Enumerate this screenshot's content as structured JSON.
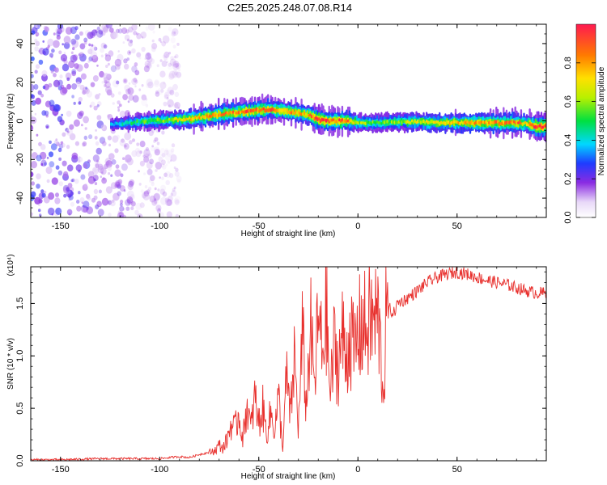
{
  "title": "C2E5.2025.248.07.08.R14",
  "chart_data": [
    {
      "type": "heatmap",
      "title": "C2E5.2025.248.07.08.R14",
      "xlabel": "Height of straight line (km)",
      "ylabel": "Frequency (Hz)",
      "xlim": [
        -165,
        95
      ],
      "ylim": [
        -50,
        50
      ],
      "xticks": [
        -150,
        -100,
        -50,
        0,
        50
      ],
      "xtick_labels": [
        "-150",
        "-100",
        "-50",
        "0",
        "50"
      ],
      "yticks": [
        -40,
        -20,
        0,
        20,
        40
      ],
      "ytick_labels": [
        "-40",
        "-20",
        "0",
        "20",
        "40"
      ],
      "ridge": {
        "x": [
          -125,
          -115,
          -105,
          -95,
          -85,
          -75,
          -65,
          -55,
          -45,
          -35,
          -25,
          -20,
          -15,
          -5,
          0,
          10,
          20,
          30,
          40,
          50,
          60,
          70,
          80,
          85,
          90,
          95
        ],
        "freq": [
          -2,
          -1,
          0,
          0.5,
          1,
          2.5,
          4,
          5,
          6,
          5,
          3,
          0.5,
          0,
          0,
          -1,
          -1,
          -0.5,
          -0.5,
          -1,
          -1,
          -1,
          -1,
          -1,
          -1.5,
          -3,
          -3
        ],
        "amplitude": [
          0.35,
          0.45,
          0.55,
          0.6,
          0.75,
          0.8,
          0.85,
          0.85,
          0.85,
          0.8,
          0.75,
          1.0,
          0.9,
          0.85,
          0.6,
          0.55,
          0.6,
          0.65,
          0.7,
          0.75,
          0.8,
          0.8,
          0.85,
          0.7,
          1.0,
          0.95
        ]
      },
      "noise_region": {
        "x_from": -165,
        "x_to": -90
      },
      "colorbar": {
        "label": "Normalized spectral amplitude",
        "range": [
          0,
          1
        ],
        "ticks": [
          0.0,
          0.2,
          0.4,
          0.6,
          0.8
        ],
        "tick_labels": [
          "0.0",
          "0.2",
          "0.4",
          "0.6",
          "0.8"
        ]
      }
    },
    {
      "type": "line",
      "xlabel": "Height of straight line (km)",
      "ylabel": "SNR (10 * v/v)",
      "scale_note": "(x10⁴)",
      "xlim": [
        -165,
        95
      ],
      "ylim": [
        0,
        1.85
      ],
      "xticks": [
        -150,
        -100,
        -50,
        0,
        50
      ],
      "xtick_labels": [
        "-150",
        "-100",
        "-50",
        "0",
        "50"
      ],
      "yticks": [
        0.0,
        0.5,
        1.0,
        1.5
      ],
      "ytick_labels": [
        "0.0",
        "0.5",
        "1.0",
        "1.5"
      ],
      "color": "#e8312e",
      "series": [
        {
          "name": "SNR",
          "x": [
            -165,
            -150,
            -130,
            -110,
            -100,
            -90,
            -85,
            -80,
            -75,
            -72,
            -70,
            -68,
            -66,
            -64,
            -62,
            -60,
            -58,
            -56,
            -54,
            -52,
            -50,
            -48,
            -46,
            -44,
            -42,
            -40,
            -38,
            -36,
            -34,
            -32,
            -30,
            -28,
            -26,
            -24,
            -22,
            -20,
            -18,
            -16,
            -14,
            -12,
            -10,
            -8,
            -6,
            -4,
            -2,
            0,
            2,
            4,
            6,
            8,
            10,
            12,
            13,
            14,
            16,
            18,
            20,
            25,
            30,
            35,
            40,
            45,
            50,
            55,
            60,
            65,
            70,
            75,
            80,
            85,
            90,
            95
          ],
          "y": [
            0.01,
            0.01,
            0.02,
            0.02,
            0.02,
            0.04,
            0.03,
            0.06,
            0.08,
            0.1,
            0.15,
            0.12,
            0.2,
            0.35,
            0.3,
            0.45,
            0.2,
            0.55,
            0.3,
            0.6,
            0.35,
            0.5,
            0.25,
            0.45,
            0.3,
            0.6,
            0.1,
            0.8,
            0.4,
            1.0,
            0.3,
            1.2,
            0.5,
            1.3,
            0.7,
            1.35,
            1.0,
            1.45,
            0.6,
            1.1,
            0.9,
            1.2,
            0.95,
            1.25,
            1.0,
            1.2,
            1.3,
            1.25,
            1.35,
            1.3,
            1.4,
            0.9,
            0.6,
            1.3,
            1.45,
            1.4,
            1.5,
            1.55,
            1.62,
            1.7,
            1.75,
            1.78,
            1.8,
            1.78,
            1.75,
            1.72,
            1.7,
            1.68,
            1.65,
            1.62,
            1.6,
            1.6
          ]
        }
      ]
    }
  ]
}
